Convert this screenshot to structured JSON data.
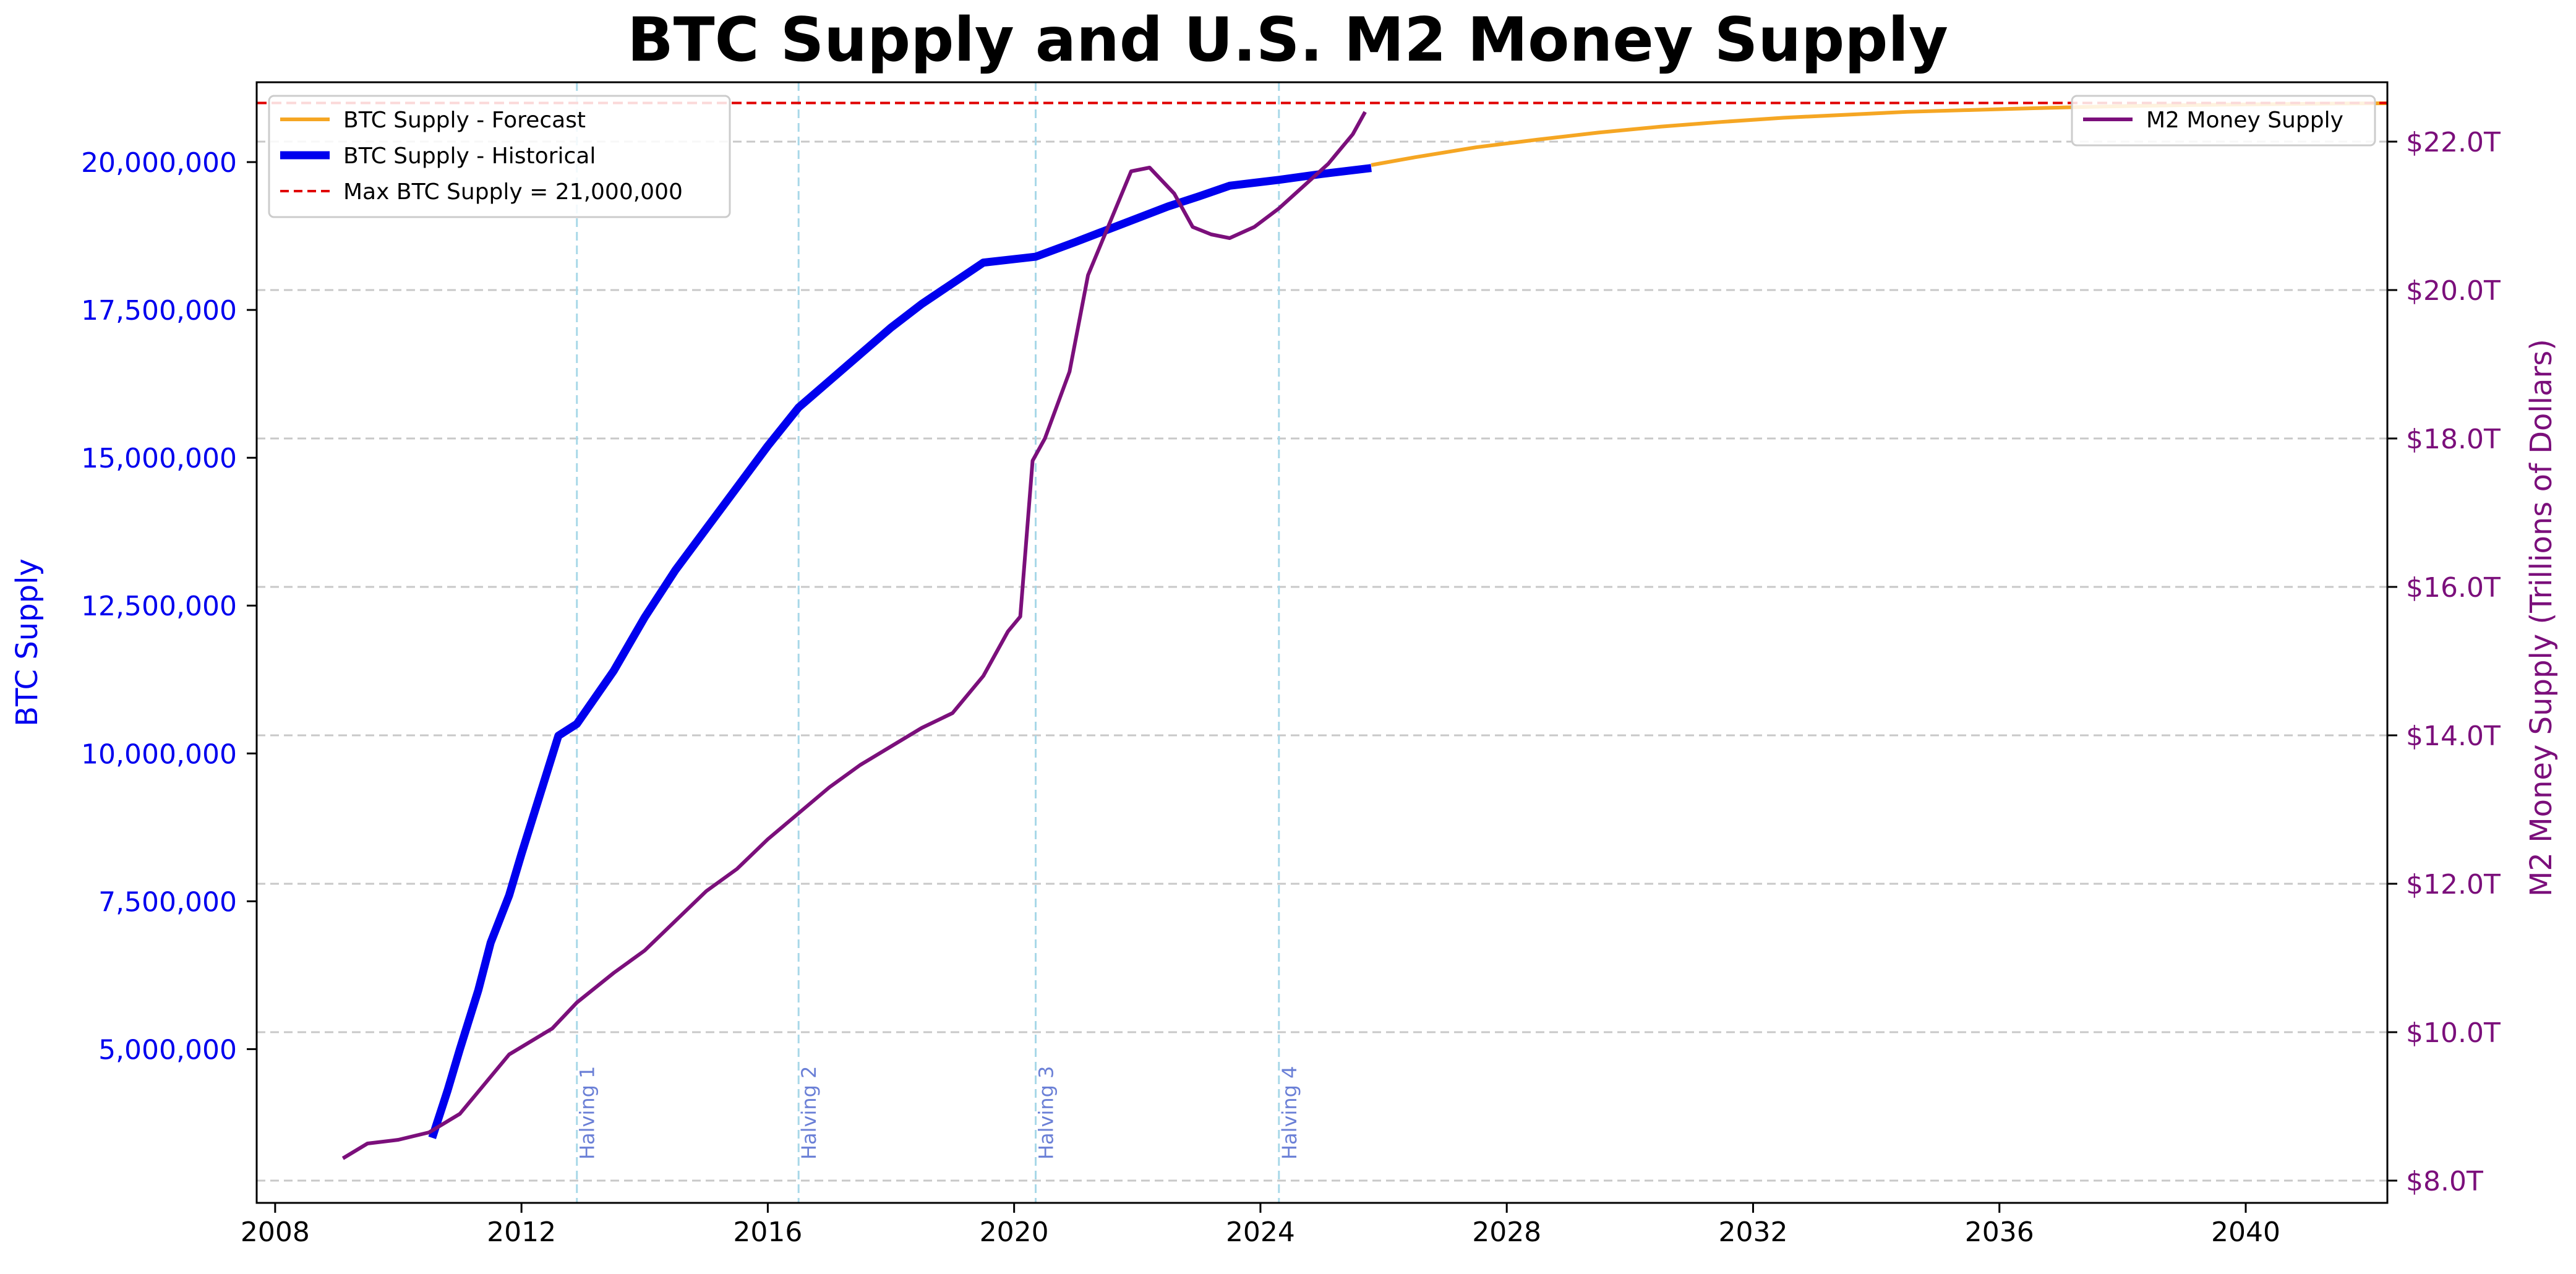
{
  "chart_data": {
    "type": "line",
    "title": "BTC Supply and U.S. M2 Money Supply",
    "xlim": [
      2007.7,
      2042.3
    ],
    "x_ticks": [
      2008,
      2012,
      2016,
      2020,
      2024,
      2028,
      2032,
      2036,
      2040
    ],
    "x_tick_labels": [
      "2008",
      "2012",
      "2016",
      "2020",
      "2024",
      "2028",
      "2032",
      "2036",
      "2040"
    ],
    "left_axis": {
      "label": "BTC Supply",
      "color": "#0000ee",
      "ylim": [
        2400000,
        21350000
      ],
      "ticks": [
        5000000,
        7500000,
        10000000,
        12500000,
        15000000,
        17500000,
        20000000
      ],
      "tick_labels": [
        "5,000,000",
        "7,500,000",
        "10,000,000",
        "12,500,000",
        "15,000,000",
        "17,500,000",
        "20,000,000"
      ]
    },
    "right_axis": {
      "label": "M2 Money Supply (Trillions of Dollars)",
      "color": "#7b0f7b",
      "ylim": [
        7.7,
        22.8
      ],
      "ticks": [
        8,
        10,
        12,
        14,
        16,
        18,
        20,
        22
      ],
      "tick_labels": [
        "$8.0T",
        "$10.0T",
        "$12.0T",
        "$14.0T",
        "$16.0T",
        "$18.0T",
        "$20.0T",
        "$22.0T"
      ]
    },
    "grid": "horizontal dashed, right-axis ticks",
    "max_supply": {
      "label": "Max BTC Supply = 21,000,000",
      "value": 21000000,
      "color": "#e00000"
    },
    "halvings": [
      {
        "label": "Halving 1",
        "x": 2012.9
      },
      {
        "label": "Halving 2",
        "x": 2016.5
      },
      {
        "label": "Halving 3",
        "x": 2020.35
      },
      {
        "label": "Halving 4",
        "x": 2024.3
      }
    ],
    "halving_line_color": "#a8d8e8",
    "series": [
      {
        "name": "BTC Supply - Forecast",
        "axis": "left",
        "color": "#f5a623",
        "x": [
          2025.8,
          2026.5,
          2027.5,
          2028.5,
          2029.5,
          2030.5,
          2031.5,
          2032.5,
          2033.5,
          2034.5,
          2035.5,
          2036.5,
          2037.5,
          2038.5,
          2039.5,
          2040.5,
          2041.5,
          2042.3
        ],
        "y": [
          19950000,
          20080000,
          20250000,
          20380000,
          20500000,
          20600000,
          20680000,
          20750000,
          20800000,
          20850000,
          20880000,
          20910000,
          20935000,
          20955000,
          20970000,
          20980000,
          20990000,
          20995000
        ]
      },
      {
        "name": "BTC Supply - Historical",
        "axis": "left",
        "color": "#0000ee",
        "x": [
          2010.55,
          2010.8,
          2011.0,
          2011.3,
          2011.5,
          2011.8,
          2012.0,
          2012.3,
          2012.6,
          2012.9,
          2013.5,
          2014.0,
          2014.5,
          2015.0,
          2015.5,
          2016.0,
          2016.5,
          2017.0,
          2017.5,
          2018.0,
          2018.5,
          2019.0,
          2019.5,
          2020.35,
          2021.0,
          2021.5,
          2022.0,
          2022.5,
          2023.0,
          2023.5,
          2024.3,
          2025.0,
          2025.8
        ],
        "y": [
          3500000,
          4300000,
          5000000,
          6000000,
          6800000,
          7600000,
          8300000,
          9300000,
          10300000,
          10500000,
          11400000,
          12300000,
          13100000,
          13800000,
          14500000,
          15200000,
          15850000,
          16300000,
          16750000,
          17200000,
          17600000,
          17950000,
          18300000,
          18400000,
          18650000,
          18850000,
          19050000,
          19250000,
          19420000,
          19600000,
          19700000,
          19800000,
          19900000
        ]
      },
      {
        "name": "M2 Money Supply",
        "axis": "right",
        "color": "#7b0f7b",
        "x": [
          2009.1,
          2009.5,
          2010.0,
          2010.5,
          2011.0,
          2011.5,
          2011.8,
          2012.0,
          2012.5,
          2012.9,
          2013.5,
          2014.0,
          2014.5,
          2015.0,
          2015.5,
          2016.0,
          2016.5,
          2017.0,
          2017.5,
          2018.0,
          2018.5,
          2019.0,
          2019.5,
          2019.9,
          2020.1,
          2020.3,
          2020.5,
          2020.9,
          2021.2,
          2021.6,
          2021.9,
          2022.2,
          2022.6,
          2022.9,
          2023.2,
          2023.5,
          2023.9,
          2024.3,
          2024.7,
          2025.1,
          2025.5,
          2025.7
        ],
        "y": [
          8.3,
          8.5,
          8.55,
          8.65,
          8.9,
          9.4,
          9.7,
          9.8,
          10.05,
          10.4,
          10.8,
          11.1,
          11.5,
          11.9,
          12.2,
          12.6,
          12.95,
          13.3,
          13.6,
          13.85,
          14.1,
          14.3,
          14.8,
          15.4,
          15.6,
          17.7,
          18.0,
          18.9,
          20.2,
          21.0,
          21.6,
          21.65,
          21.3,
          20.85,
          20.75,
          20.7,
          20.85,
          21.1,
          21.4,
          21.7,
          22.1,
          22.4
        ]
      }
    ],
    "legend_left": [
      "BTC Supply - Forecast",
      "BTC Supply - Historical",
      "Max BTC Supply = 21,000,000"
    ],
    "legend_right": [
      "M2 Money Supply"
    ],
    "legend_placement": {
      "left": "upper-left",
      "right": "upper-right"
    }
  }
}
